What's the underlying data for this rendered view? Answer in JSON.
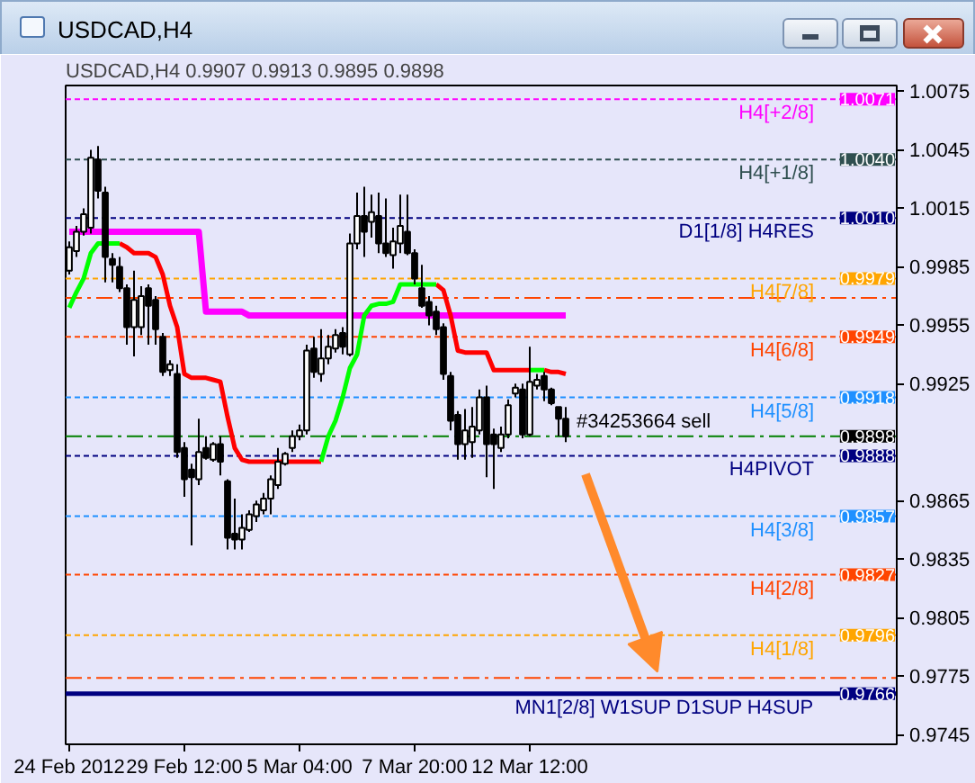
{
  "chart_data": {
    "type": "candlestick",
    "title": "USDCAD,H4",
    "subtitle": "USDCAD,H4  0.9907 0.9913 0.9895 0.9898",
    "categories": [
      "24 Feb 2012",
      null,
      null,
      null,
      null,
      null,
      null,
      null,
      null,
      null,
      null,
      null,
      null,
      null,
      null,
      null,
      "29 Feb 12:00",
      null,
      null,
      null,
      null,
      null,
      null,
      null,
      null,
      null,
      null,
      null,
      null,
      null,
      null,
      null,
      "5 Mar 04:00",
      null,
      null,
      null,
      null,
      null,
      null,
      null,
      null,
      null,
      null,
      null,
      null,
      null,
      null,
      null,
      "7 Mar 20:00",
      null,
      null,
      null,
      null,
      null,
      null,
      null,
      null,
      null,
      null,
      null,
      null,
      null,
      null,
      null,
      "12 Mar 12:00",
      null,
      null,
      null,
      null,
      null
    ],
    "ohlc": [
      [
        0.9983,
        0.9998,
        0.9981,
        0.9995
      ],
      [
        0.9993,
        1.0006,
        0.999,
        1.0003
      ],
      [
        1.0003,
        1.0015,
        1.0001,
        1.0012
      ],
      [
        1.0005,
        1.0045,
        1.0002,
        1.0041
      ],
      [
        1.004,
        1.0047,
        1.002,
        1.0024
      ],
      [
        1.0023,
        1.0026,
        0.9977,
        0.999
      ],
      [
        0.9989,
        0.9992,
        0.9977,
        0.9986
      ],
      [
        0.9985,
        0.999,
        0.9972,
        0.9974
      ],
      [
        0.9974,
        0.9976,
        0.9945,
        0.9954
      ],
      [
        0.9954,
        0.9983,
        0.9939,
        0.9968
      ],
      [
        0.9954,
        0.9975,
        0.995,
        0.997
      ],
      [
        0.9974,
        0.9976,
        0.9945,
        0.9965
      ],
      [
        0.9968,
        0.997,
        0.9945,
        0.9953
      ],
      [
        0.9949,
        0.9951,
        0.9929,
        0.9931
      ],
      [
        0.9932,
        0.9937,
        0.9929,
        0.9935
      ],
      [
        0.993,
        0.9935,
        0.9887,
        0.989
      ],
      [
        0.9892,
        0.9895,
        0.9867,
        0.9876
      ],
      [
        0.9881,
        0.9884,
        0.9842,
        0.9877
      ],
      [
        0.9876,
        0.9907,
        0.9873,
        0.989
      ],
      [
        0.9892,
        0.9898,
        0.9886,
        0.9887
      ],
      [
        0.9886,
        0.9895,
        0.9885,
        0.9894
      ],
      [
        0.9894,
        0.9898,
        0.9878,
        0.9885
      ],
      [
        0.9875,
        0.9876,
        0.984,
        0.9846
      ],
      [
        0.9848,
        0.9866,
        0.984,
        0.9845
      ],
      [
        0.9845,
        0.9858,
        0.984,
        0.9851
      ],
      [
        0.985,
        0.986,
        0.9849,
        0.9858
      ],
      [
        0.9857,
        0.9865,
        0.9854,
        0.9863
      ],
      [
        0.986,
        0.9869,
        0.9858,
        0.9866
      ],
      [
        0.9866,
        0.9878,
        0.9858,
        0.9876
      ],
      [
        0.9873,
        0.9892,
        0.9871,
        0.9885
      ],
      [
        0.9884,
        0.989,
        0.9883,
        0.9889
      ],
      [
        0.9892,
        0.9901,
        0.989,
        0.9898
      ],
      [
        0.9898,
        0.9904,
        0.9896,
        0.9901
      ],
      [
        0.9901,
        0.9945,
        0.9899,
        0.9942
      ],
      [
        0.9943,
        0.9949,
        0.9928,
        0.9931
      ],
      [
        0.993,
        0.9953,
        0.9926,
        0.9938
      ],
      [
        0.9938,
        0.995,
        0.9935,
        0.9944
      ],
      [
        0.9943,
        0.9953,
        0.9941,
        0.995
      ],
      [
        0.9951,
        0.9954,
        0.994,
        0.9944
      ],
      [
        0.994,
        1.0002,
        0.9939,
        0.9997
      ],
      [
        0.9997,
        1.0023,
        0.9994,
        1.0011
      ],
      [
        1.0011,
        1.0026,
        0.999,
        1.0003
      ],
      [
        1.0008,
        1.0022,
        1.0,
        1.0013
      ],
      [
        1.0011,
        1.0023,
        0.9992,
        0.9997
      ],
      [
        0.9997,
        1.002,
        0.999,
        0.9992
      ],
      [
        0.9991,
        1.0005,
        0.9984,
        0.9998
      ],
      [
        0.9997,
        1.0022,
        0.9992,
        1.0006
      ],
      [
        1.0003,
        1.0022,
        0.9991,
        0.9992
      ],
      [
        0.9992,
        0.9994,
        0.9976,
        0.9979
      ],
      [
        0.9974,
        0.9986,
        0.9964,
        0.9965
      ],
      [
        0.9967,
        0.997,
        0.9955,
        0.996
      ],
      [
        0.9962,
        0.9965,
        0.995,
        0.9953
      ],
      [
        0.9954,
        0.9956,
        0.9927,
        0.993
      ],
      [
        0.9929,
        0.9931,
        0.9901,
        0.9906
      ],
      [
        0.9909,
        0.9911,
        0.9886,
        0.9894
      ],
      [
        0.9894,
        0.9912,
        0.9886,
        0.9901
      ],
      [
        0.9895,
        0.9913,
        0.9887,
        0.9903
      ],
      [
        0.9901,
        0.9922,
        0.9899,
        0.9918
      ],
      [
        0.9918,
        0.9924,
        0.9877,
        0.9894
      ],
      [
        0.9899,
        0.9902,
        0.9871,
        0.9894
      ],
      [
        0.9892,
        0.9903,
        0.989,
        0.9899
      ],
      [
        0.9899,
        0.9917,
        0.9897,
        0.9914
      ],
      [
        0.992,
        0.9925,
        0.9918,
        0.9923
      ],
      [
        0.9922,
        0.9925,
        0.9897,
        0.9899
      ],
      [
        0.9899,
        0.9944,
        0.9898,
        0.9926
      ],
      [
        0.9924,
        0.993,
        0.9922,
        0.9927
      ],
      [
        0.9929,
        0.9931,
        0.9916,
        0.9922
      ],
      [
        0.9922,
        0.9923,
        0.9914,
        0.9915
      ],
      [
        0.9913,
        0.9913,
        0.9898,
        0.9907
      ],
      [
        0.9907,
        0.9913,
        0.9895,
        0.9898
      ]
    ],
    "series": [
      {
        "type": "line",
        "color": "#ff00ff",
        "values": [
          1.0003,
          1.0003,
          1.0003,
          1.0003,
          1.0003,
          1.0003,
          1.0003,
          1.0003,
          1.0003,
          1.0003,
          1.0003,
          1.0003,
          1.0003,
          1.0003,
          1.0003,
          1.0003,
          1.0003,
          1.0003,
          1.0003,
          0.9962,
          0.9962,
          0.9962,
          0.9962,
          0.9962,
          0.9962,
          0.996,
          0.996,
          0.996,
          0.996,
          0.996,
          0.996,
          0.996,
          0.996,
          0.996,
          0.996,
          0.996,
          0.996,
          0.996,
          0.996,
          0.996,
          0.996,
          0.996,
          0.996,
          0.996,
          0.996,
          0.996,
          0.996,
          0.996,
          0.996,
          0.996,
          0.996,
          0.996,
          0.996,
          0.996,
          0.996,
          0.996,
          0.996,
          0.996,
          0.996,
          0.996,
          0.996,
          0.996,
          0.996,
          0.996,
          0.996,
          0.996,
          0.996,
          0.996,
          0.996,
          0.996
        ]
      },
      {
        "type": "line",
        "color": "#ff0000",
        "values": [
          null,
          null,
          null,
          null,
          null,
          null,
          null,
          0.9997,
          0.9995,
          0.9992,
          0.9992,
          0.9992,
          0.999,
          0.9981,
          0.9965,
          0.9954,
          0.993,
          0.9928,
          0.9928,
          0.9928,
          0.9927,
          0.9926,
          0.9908,
          0.9892,
          0.9886,
          0.9885,
          0.9885,
          0.9885,
          0.9885,
          0.9885,
          0.9885,
          0.9885,
          0.9885,
          0.9885,
          0.9885,
          0.9885,
          null,
          null,
          null,
          null,
          null,
          null,
          null,
          null,
          null,
          null,
          null,
          null,
          null,
          null,
          null,
          null,
          null,
          null,
          null,
          null,
          null,
          null,
          null,
          null,
          null,
          null,
          null,
          null,
          null,
          null,
          null,
          null,
          null,
          null
        ]
      },
      {
        "type": "line",
        "color": "#ff0000",
        "values": [
          null,
          null,
          null,
          null,
          null,
          null,
          null,
          null,
          null,
          null,
          null,
          null,
          null,
          null,
          null,
          null,
          null,
          null,
          null,
          null,
          null,
          null,
          null,
          null,
          null,
          null,
          null,
          null,
          null,
          null,
          null,
          null,
          null,
          null,
          null,
          null,
          null,
          null,
          null,
          null,
          null,
          null,
          null,
          null,
          null,
          null,
          null,
          null,
          null,
          null,
          null,
          0.9976,
          0.9973,
          0.996,
          0.9942,
          0.9941,
          0.9941,
          0.9941,
          0.9941,
          0.9932,
          0.9932,
          0.9932,
          0.9932,
          0.9932,
          0.9932,
          null,
          null,
          null,
          null,
          null
        ]
      },
      {
        "type": "line",
        "color": "#ff0000",
        "values": [
          null,
          null,
          null,
          null,
          null,
          null,
          null,
          null,
          null,
          null,
          null,
          null,
          null,
          null,
          null,
          null,
          null,
          null,
          null,
          null,
          null,
          null,
          null,
          null,
          null,
          null,
          null,
          null,
          null,
          null,
          null,
          null,
          null,
          null,
          null,
          null,
          null,
          null,
          null,
          null,
          null,
          null,
          null,
          null,
          null,
          null,
          null,
          null,
          null,
          null,
          null,
          null,
          null,
          null,
          null,
          null,
          null,
          null,
          null,
          null,
          null,
          null,
          null,
          null,
          null,
          null,
          0.9932,
          0.9931,
          0.9931,
          0.993
        ]
      },
      {
        "type": "line",
        "color": "#00ff00",
        "values": [
          0.9964,
          0.9972,
          0.9979,
          0.9992,
          0.9997,
          0.9997,
          0.9997,
          0.9997,
          null,
          null,
          null,
          null,
          null,
          null,
          null,
          null,
          null,
          null,
          null,
          null,
          null,
          null,
          null,
          null,
          null,
          null,
          null,
          null,
          null,
          null,
          null,
          null,
          null,
          null,
          null,
          null,
          null,
          null,
          null,
          null,
          null,
          null,
          null,
          null,
          null,
          null,
          null,
          null,
          null,
          null,
          null,
          null,
          null,
          null,
          null,
          null,
          null,
          null,
          null,
          null,
          null,
          null,
          null,
          null,
          null,
          null,
          null,
          null,
          null,
          null
        ]
      },
      {
        "type": "line",
        "color": "#00ff00",
        "values": [
          null,
          null,
          null,
          null,
          null,
          null,
          null,
          null,
          null,
          null,
          null,
          null,
          null,
          null,
          null,
          null,
          null,
          null,
          null,
          null,
          null,
          null,
          null,
          null,
          null,
          null,
          null,
          null,
          null,
          null,
          null,
          null,
          null,
          null,
          null,
          0.9885,
          0.9898,
          0.9906,
          0.9918,
          0.9933,
          0.994,
          0.996,
          0.9965,
          0.9966,
          0.9966,
          0.9967,
          0.9976,
          0.9976,
          0.9976,
          0.9976,
          0.9976,
          0.9976,
          null,
          null,
          null,
          null,
          null,
          null,
          null,
          null,
          null,
          null,
          null,
          null,
          null,
          null,
          null,
          null,
          null,
          null
        ]
      },
      {
        "type": "line",
        "color": "#00ff00",
        "values": [
          null,
          null,
          null,
          null,
          null,
          null,
          null,
          null,
          null,
          null,
          null,
          null,
          null,
          null,
          null,
          null,
          null,
          null,
          null,
          null,
          null,
          null,
          null,
          null,
          null,
          null,
          null,
          null,
          null,
          null,
          null,
          null,
          null,
          null,
          null,
          null,
          null,
          null,
          null,
          null,
          null,
          null,
          null,
          null,
          null,
          null,
          null,
          null,
          null,
          null,
          null,
          null,
          null,
          null,
          null,
          null,
          null,
          null,
          null,
          null,
          null,
          null,
          null,
          null,
          0.9932,
          0.9932,
          0.9932,
          null,
          null,
          null
        ]
      }
    ],
    "ylim": [
      0.974,
      1.0078
    ],
    "yticks": [
      1.0075,
      1.0045,
      1.0015,
      0.9985,
      0.9955,
      0.9925,
      0.9865,
      0.9835,
      0.9805,
      0.9775,
      0.9745
    ],
    "ref_lines": [
      {
        "axis": "y",
        "value": 1.0071,
        "label": "H4[+2/8]",
        "color": "#ff00ff",
        "line_style": "dashed"
      },
      {
        "axis": "y",
        "value": 1.004,
        "label": "H4[+1/8]",
        "color": "#2f4f4f",
        "line_style": "dashed"
      },
      {
        "axis": "y",
        "value": 1.001,
        "label": "D1[1/8] H4RES",
        "color": "#000080",
        "line_style": "dashed"
      },
      {
        "axis": "y",
        "value": 0.9979,
        "label": "H4[7/8]",
        "color": "#ffa500",
        "line_style": "dashed"
      },
      {
        "axis": "y",
        "value": 0.9949,
        "label": "H4[6/8]",
        "color": "#ff4500",
        "line_style": "dashed"
      },
      {
        "axis": "y",
        "value": 0.9918,
        "label": "H4[5/8]",
        "color": "#1e90ff",
        "line_style": "dashed"
      },
      {
        "axis": "y",
        "value": 0.9888,
        "label": "H4PIVOT",
        "color": "#000080",
        "line_style": "dashed"
      },
      {
        "axis": "y",
        "value": 0.9857,
        "label": "H4[3/8]",
        "color": "#1e90ff",
        "line_style": "dashed"
      },
      {
        "axis": "y",
        "value": 0.9827,
        "label": "H4[2/8]",
        "color": "#ff4500",
        "line_style": "dashed"
      },
      {
        "axis": "y",
        "value": 0.9796,
        "label": "H4[1/8]",
        "color": "#ffa500",
        "line_style": "dashed"
      },
      {
        "axis": "y",
        "value": 0.9766,
        "label": "MN1[2/8] W1SUP D1SUP H4SUP",
        "color": "#000080",
        "line_style": "solid"
      },
      {
        "axis": "y",
        "value": 0.9898,
        "label": "#34253664 sell",
        "color": "#008000",
        "line_style": "dashdot"
      },
      {
        "axis": "y",
        "value": 0.9969,
        "color": "#ff4500",
        "line_style": "dashdot"
      },
      {
        "axis": "y",
        "value": 0.9774,
        "color": "#ff4500",
        "line_style": "dashdot"
      }
    ],
    "annotations": [
      {
        "text": "1.0071",
        "y": 1.0071
      },
      {
        "text": "1.0040",
        "y": 1.004
      },
      {
        "text": "1.0010",
        "y": 1.001
      },
      {
        "text": "0.9979",
        "y": 0.9979
      },
      {
        "text": "0.9949",
        "y": 0.9949
      },
      {
        "text": "0.9918",
        "y": 0.9918
      },
      {
        "text": "0.9898",
        "y": 0.9898
      },
      {
        "text": "0.9888",
        "y": 0.9888
      },
      {
        "text": "0.9857",
        "y": 0.9857
      },
      {
        "text": "0.9827",
        "y": 0.9827
      },
      {
        "text": "0.9796",
        "y": 0.9796
      },
      {
        "text": "0.9766",
        "y": 0.9766
      }
    ]
  }
}
